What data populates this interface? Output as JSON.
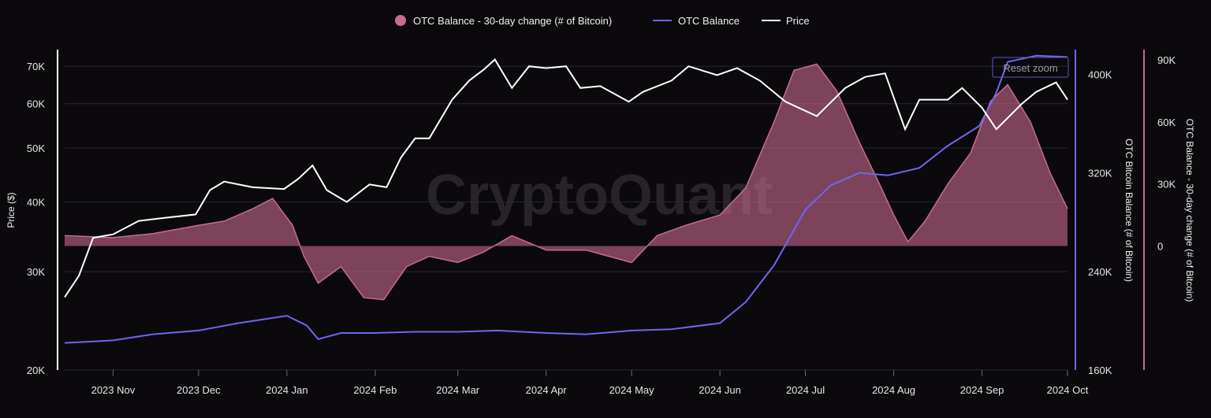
{
  "legend": {
    "items": [
      {
        "label": "OTC Balance - 30-day change (# of Bitcoin)",
        "color": "#c86b8f",
        "shape": "circle"
      },
      {
        "label": "OTC Balance",
        "color": "#6f66f2",
        "shape": "line"
      },
      {
        "label": "Price",
        "color": "#ffffff",
        "shape": "line"
      }
    ]
  },
  "watermark": "CryptoQuant",
  "reset_zoom_label": "Reset zoom",
  "axes": {
    "left": {
      "title": "Price ($)",
      "ticks": [
        "70K",
        "60K",
        "50K",
        "40K",
        "30K",
        "20K"
      ],
      "scale": "log"
    },
    "right1": {
      "title": "OTC Bitcoin Balance (# of Bitcoin)",
      "ticks": [
        "400K",
        "320K",
        "240K",
        "160K"
      ]
    },
    "right2": {
      "title": "OTC Balance - 30-day change (# of Bitcoin)",
      "ticks": [
        "90K",
        "60K",
        "30K",
        "0"
      ]
    },
    "x": {
      "ticks": [
        "2023 Nov",
        "2023 Dec",
        "2024 Jan",
        "2024 Feb",
        "2024 Mar",
        "2024 Apr",
        "2024 May",
        "2024 Jun",
        "2024 Jul",
        "2024 Aug",
        "2024 Sep",
        "2024 Oct"
      ]
    }
  },
  "chart_data": {
    "type": "line",
    "x_range": [
      "2023-10-15",
      "2024-10-01"
    ],
    "price_range": [
      20000,
      75000
    ],
    "balance_range": [
      160000,
      420000
    ],
    "change_range": [
      -60000,
      95000
    ],
    "grid": true,
    "series": [
      {
        "name": "Price",
        "axis": "left",
        "color": "#ffffff",
        "x": [
          "2023-10-15",
          "2023-10-20",
          "2023-10-25",
          "2023-11-01",
          "2023-11-10",
          "2023-11-20",
          "2023-11-30",
          "2023-12-05",
          "2023-12-10",
          "2023-12-20",
          "2023-12-31",
          "2024-01-05",
          "2024-01-10",
          "2024-01-15",
          "2024-01-22",
          "2024-01-30",
          "2024-02-05",
          "2024-02-10",
          "2024-02-15",
          "2024-02-20",
          "2024-02-28",
          "2024-03-05",
          "2024-03-10",
          "2024-03-14",
          "2024-03-20",
          "2024-03-26",
          "2024-04-01",
          "2024-04-08",
          "2024-04-13",
          "2024-04-20",
          "2024-04-30",
          "2024-05-05",
          "2024-05-15",
          "2024-05-21",
          "2024-05-31",
          "2024-06-07",
          "2024-06-15",
          "2024-06-24",
          "2024-07-05",
          "2024-07-15",
          "2024-07-22",
          "2024-07-29",
          "2024-08-05",
          "2024-08-10",
          "2024-08-20",
          "2024-08-25",
          "2024-09-01",
          "2024-09-06",
          "2024-09-15",
          "2024-09-20",
          "2024-09-27",
          "2024-10-01"
        ],
        "values": [
          27000,
          29500,
          34500,
          35000,
          37000,
          37500,
          38000,
          42000,
          43500,
          42500,
          42200,
          44000,
          46500,
          42000,
          40000,
          43000,
          42500,
          48000,
          52000,
          52000,
          61000,
          66000,
          69000,
          72000,
          64000,
          70000,
          69500,
          70000,
          64000,
          64500,
          60500,
          63000,
          66000,
          70000,
          67500,
          69500,
          66000,
          60500,
          57000,
          64000,
          67000,
          68000,
          54000,
          61000,
          61000,
          64000,
          59000,
          54000,
          60000,
          63000,
          65500,
          61000
        ]
      },
      {
        "name": "OTC Balance",
        "axis": "right1",
        "color": "#6f66f2",
        "x": [
          "2023-10-15",
          "2023-11-01",
          "2023-11-15",
          "2023-12-01",
          "2023-12-15",
          "2024-01-01",
          "2024-01-08",
          "2024-01-12",
          "2024-01-20",
          "2024-02-01",
          "2024-02-15",
          "2024-03-01",
          "2024-03-15",
          "2024-04-01",
          "2024-04-15",
          "2024-05-01",
          "2024-05-15",
          "2024-06-01",
          "2024-06-10",
          "2024-06-20",
          "2024-07-01",
          "2024-07-10",
          "2024-07-20",
          "2024-07-30",
          "2024-08-10",
          "2024-08-20",
          "2024-08-31",
          "2024-09-06",
          "2024-09-10",
          "2024-09-20",
          "2024-10-01"
        ],
        "values": [
          182000,
          184000,
          189000,
          192000,
          198000,
          204000,
          196000,
          185000,
          190000,
          190000,
          191000,
          191000,
          192000,
          190000,
          189000,
          192000,
          193000,
          198000,
          215000,
          245000,
          290000,
          310000,
          320000,
          318000,
          324000,
          342000,
          358000,
          385000,
          410000,
          415000,
          414000
        ]
      },
      {
        "name": "OTC Balance - 30-day change (# of Bitcoin)",
        "axis": "right2",
        "color": "#c86b8f",
        "x": [
          "2023-10-15",
          "2023-11-01",
          "2023-11-15",
          "2023-12-01",
          "2023-12-10",
          "2023-12-20",
          "2023-12-27",
          "2024-01-03",
          "2024-01-07",
          "2024-01-12",
          "2024-01-20",
          "2024-01-28",
          "2024-02-04",
          "2024-02-12",
          "2024-02-20",
          "2024-03-01",
          "2024-03-10",
          "2024-03-20",
          "2024-04-01",
          "2024-04-15",
          "2024-05-01",
          "2024-05-10",
          "2024-05-20",
          "2024-06-01",
          "2024-06-10",
          "2024-06-20",
          "2024-06-27",
          "2024-07-05",
          "2024-07-12",
          "2024-07-20",
          "2024-07-27",
          "2024-08-01",
          "2024-08-06",
          "2024-08-12",
          "2024-08-20",
          "2024-08-28",
          "2024-09-04",
          "2024-09-10",
          "2024-09-18",
          "2024-09-25",
          "2024-10-01"
        ],
        "values": [
          5000,
          4000,
          6000,
          10000,
          12000,
          18000,
          23000,
          10000,
          -5000,
          -18000,
          -10000,
          -25000,
          -26000,
          -10000,
          -5000,
          -8000,
          -3000,
          5000,
          -2000,
          -2000,
          -8000,
          5000,
          10000,
          15000,
          28000,
          60000,
          85000,
          88000,
          75000,
          50000,
          30000,
          15000,
          2000,
          12000,
          30000,
          45000,
          70000,
          78000,
          60000,
          35000,
          18000
        ]
      }
    ]
  }
}
